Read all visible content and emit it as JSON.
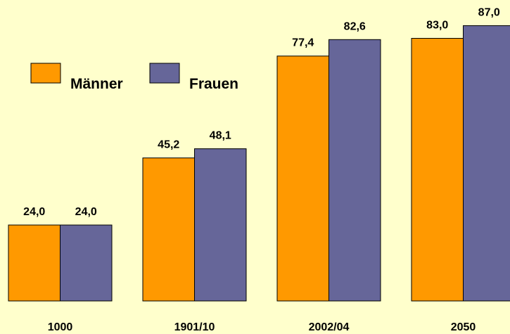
{
  "chart_data": {
    "type": "bar",
    "categories": [
      "1000",
      "1901/10",
      "2002/04",
      "2050"
    ],
    "series": [
      {
        "name": "Männer",
        "color": "#ff9900",
        "values": [
          24.0,
          45.2,
          77.4,
          83.0
        ],
        "value_labels": [
          "24,0",
          "45,2",
          "77,4",
          "83,0"
        ]
      },
      {
        "name": "Frauen",
        "color": "#666699",
        "values": [
          24.0,
          48.1,
          82.6,
          87.0
        ],
        "value_labels": [
          "24,0",
          "48,1",
          "82,6",
          "87,0"
        ]
      }
    ]
  }
}
